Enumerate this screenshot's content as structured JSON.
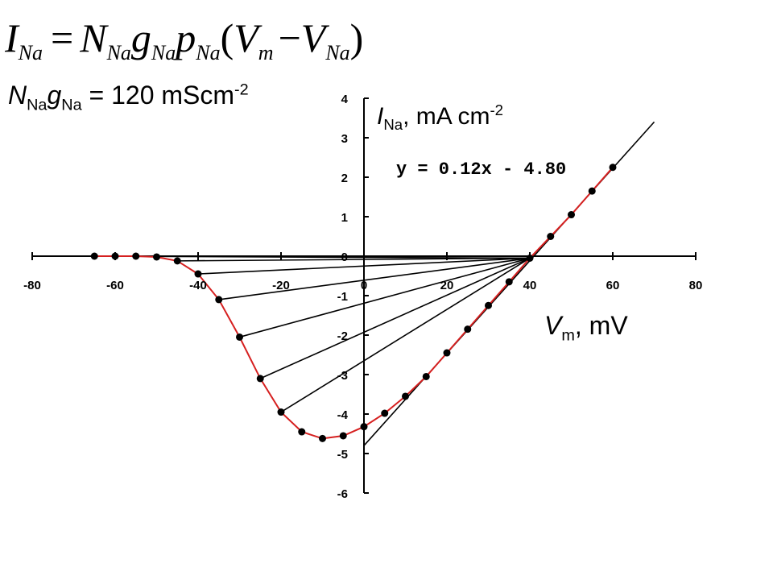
{
  "formula": {
    "lhs": "I",
    "lhs_sub": "Na",
    "equals": "=",
    "n": "N",
    "n_sub": "Na",
    "g": "g",
    "g_sub": "Na",
    "p": "p",
    "p_sub": "Na",
    "open": "(",
    "vm": "V",
    "vm_sub": "m",
    "minus": "−",
    "vna": "V",
    "vna_sub": "Na",
    "close": ")"
  },
  "annotations": {
    "conductance": {
      "n": "N",
      "n_sub": "Na",
      "g": "g",
      "g_sub": "Na",
      "rest": " = 120 mScm",
      "sup": "-2"
    },
    "current_label": {
      "sym": "I",
      "sub": "Na",
      "rest": ", mA cm",
      "sup": "-2"
    },
    "voltage_label": {
      "sym": "V",
      "sub": "m",
      "rest": ", mV"
    }
  },
  "chart_data": {
    "type": "scatter",
    "x_ticks": [
      -80,
      -60,
      -40,
      -20,
      0,
      20,
      40,
      60,
      80
    ],
    "x_tick_labels": [
      "-80",
      "-60",
      "-40",
      "-20",
      "0",
      "20",
      "40",
      "60",
      "80"
    ],
    "y_ticks": [
      -6,
      -5,
      -4,
      -3,
      -2,
      -1,
      0,
      1,
      2,
      3,
      4
    ],
    "y_tick_labels": [
      "-6",
      "-5",
      "-4",
      "-3",
      "-2",
      "-1",
      "0",
      "1",
      "2",
      "3",
      "4"
    ],
    "xlim": [
      -80,
      80
    ],
    "ylim": [
      -6,
      4
    ],
    "grid": false,
    "legend": "none",
    "series": [
      {
        "kind": "points_with_curve",
        "color": "#d62020",
        "marker_color": "#000000",
        "x": [
          -65,
          -60,
          -55,
          -50,
          -45,
          -40,
          -35,
          -30,
          -25,
          -20,
          -15,
          -10,
          -5,
          0,
          5,
          10,
          15,
          20,
          25,
          30,
          35,
          40,
          45,
          50,
          55,
          60
        ],
        "y": [
          0.0,
          0.0,
          0.0,
          -0.02,
          -0.12,
          -0.45,
          -1.1,
          -2.05,
          -3.1,
          -3.95,
          -4.45,
          -4.62,
          -4.55,
          -4.32,
          -3.98,
          -3.55,
          -3.05,
          -2.45,
          -1.85,
          -1.25,
          -0.65,
          -0.05,
          0.5,
          1.05,
          1.65,
          2.25
        ]
      }
    ],
    "lines": [
      {
        "name": "fit",
        "points": [
          [
            0,
            -4.8
          ],
          [
            70,
            3.4
          ]
        ]
      },
      {
        "points": [
          [
            -65,
            0.0
          ],
          [
            40,
            -0.05
          ]
        ]
      },
      {
        "points": [
          [
            -45,
            -0.12
          ],
          [
            40,
            -0.05
          ]
        ]
      },
      {
        "points": [
          [
            -40,
            -0.45
          ],
          [
            40,
            -0.05
          ]
        ]
      },
      {
        "points": [
          [
            -35,
            -1.1
          ],
          [
            40,
            -0.05
          ]
        ]
      },
      {
        "points": [
          [
            -30,
            -2.05
          ],
          [
            40,
            -0.05
          ]
        ]
      },
      {
        "points": [
          [
            -25,
            -3.1
          ],
          [
            40,
            -0.05
          ]
        ]
      },
      {
        "points": [
          [
            -20,
            -3.95
          ],
          [
            40,
            -0.05
          ]
        ]
      }
    ],
    "fit_equation": "y = 0.12x - 4.80"
  }
}
